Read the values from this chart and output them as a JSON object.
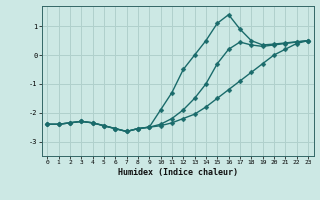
{
  "bg_color": "#cce8e4",
  "grid_color": "#b0d0cc",
  "line_color": "#1a6b6b",
  "xlabel": "Humidex (Indice chaleur)",
  "xlim": [
    -0.5,
    23.5
  ],
  "ylim": [
    -3.5,
    1.7
  ],
  "yticks": [
    -3,
    -2,
    -1,
    0,
    1
  ],
  "xticks": [
    0,
    1,
    2,
    3,
    4,
    5,
    6,
    7,
    8,
    9,
    10,
    11,
    12,
    13,
    14,
    15,
    16,
    17,
    18,
    19,
    20,
    21,
    22,
    23
  ],
  "series1_x": [
    0,
    1,
    2,
    3,
    4,
    5,
    6,
    7,
    8,
    9,
    10,
    11,
    12,
    13,
    14,
    15,
    16,
    17,
    18,
    19,
    20,
    21,
    22,
    23
  ],
  "series1_y": [
    -2.4,
    -2.4,
    -2.35,
    -2.3,
    -2.35,
    -2.45,
    -2.55,
    -2.65,
    -2.55,
    -2.5,
    -2.45,
    -2.35,
    -2.2,
    -2.05,
    -1.8,
    -1.5,
    -1.2,
    -0.9,
    -0.6,
    -0.3,
    0.0,
    0.2,
    0.4,
    0.5
  ],
  "series2_x": [
    0,
    1,
    2,
    3,
    4,
    5,
    6,
    7,
    8,
    9,
    10,
    11,
    12,
    13,
    14,
    15,
    16,
    17,
    18,
    19,
    20,
    21,
    22,
    23
  ],
  "series2_y": [
    -2.4,
    -2.4,
    -2.35,
    -2.3,
    -2.35,
    -2.45,
    -2.55,
    -2.65,
    -2.55,
    -2.5,
    -2.4,
    -2.2,
    -1.9,
    -1.5,
    -1.0,
    -0.3,
    0.2,
    0.45,
    0.35,
    0.3,
    0.35,
    0.4,
    0.45,
    0.5
  ],
  "series3_x": [
    0,
    1,
    2,
    3,
    4,
    5,
    6,
    7,
    8,
    9,
    10,
    11,
    12,
    13,
    14,
    15,
    16,
    17,
    18,
    19,
    20,
    21,
    22,
    23
  ],
  "series3_y": [
    -2.4,
    -2.4,
    -2.35,
    -2.3,
    -2.35,
    -2.45,
    -2.55,
    -2.65,
    -2.55,
    -2.5,
    -1.9,
    -1.3,
    -0.5,
    0.0,
    0.5,
    1.1,
    1.4,
    0.9,
    0.5,
    0.35,
    0.38,
    0.42,
    0.46,
    0.5
  ]
}
